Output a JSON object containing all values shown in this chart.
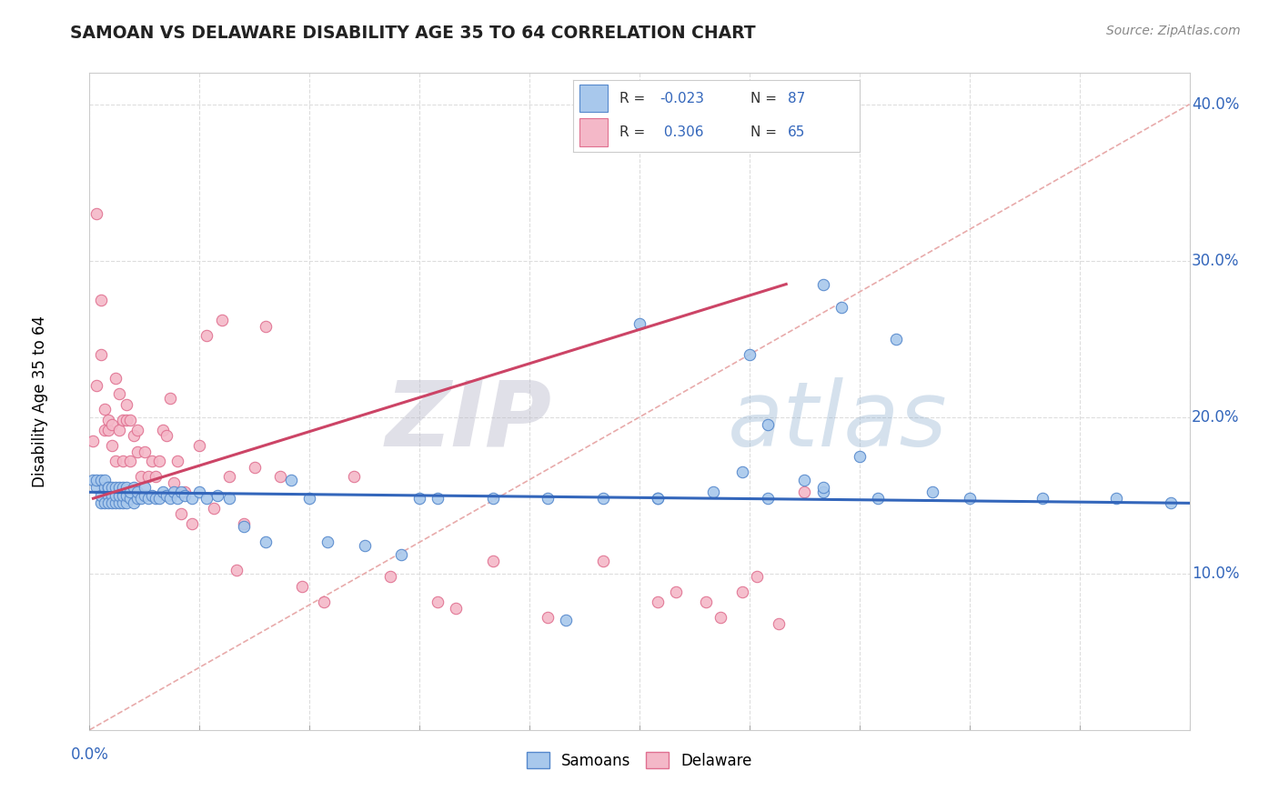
{
  "title": "SAMOAN VS DELAWARE DISABILITY AGE 35 TO 64 CORRELATION CHART",
  "source_text": "Source: ZipAtlas.com",
  "xmin": 0.0,
  "xmax": 0.3,
  "ymin": 0.0,
  "ymax": 0.42,
  "blue_R": -0.023,
  "blue_N": 87,
  "pink_R": 0.306,
  "pink_N": 65,
  "legend_label_blue": "Samoans",
  "legend_label_pink": "Delaware",
  "blue_color": "#A8C8EC",
  "pink_color": "#F4B8C8",
  "blue_edge": "#5588CC",
  "pink_edge": "#E07090",
  "blue_line_color": "#3366BB",
  "pink_line_color": "#CC4466",
  "ref_line_color": "#E8AAAA",
  "watermark_zip": "ZIP",
  "watermark_atlas": "atlas",
  "blue_scatter_x": [
    0.001,
    0.002,
    0.002,
    0.003,
    0.003,
    0.003,
    0.004,
    0.004,
    0.004,
    0.005,
    0.005,
    0.005,
    0.005,
    0.006,
    0.006,
    0.006,
    0.007,
    0.007,
    0.007,
    0.008,
    0.008,
    0.008,
    0.009,
    0.009,
    0.009,
    0.01,
    0.01,
    0.01,
    0.011,
    0.011,
    0.012,
    0.012,
    0.013,
    0.013,
    0.014,
    0.015,
    0.015,
    0.016,
    0.017,
    0.018,
    0.019,
    0.02,
    0.021,
    0.022,
    0.023,
    0.024,
    0.025,
    0.026,
    0.028,
    0.03,
    0.032,
    0.035,
    0.038,
    0.042,
    0.048,
    0.055,
    0.06,
    0.065,
    0.075,
    0.085,
    0.095,
    0.11,
    0.125,
    0.14,
    0.155,
    0.17,
    0.185,
    0.2,
    0.215,
    0.23,
    0.15,
    0.18,
    0.205,
    0.22,
    0.185,
    0.2,
    0.26,
    0.28,
    0.295,
    0.178,
    0.195,
    0.21,
    0.24,
    0.2,
    0.155,
    0.13,
    0.09
  ],
  "blue_scatter_y": [
    0.16,
    0.155,
    0.16,
    0.145,
    0.15,
    0.16,
    0.145,
    0.155,
    0.16,
    0.15,
    0.155,
    0.145,
    0.155,
    0.15,
    0.145,
    0.155,
    0.145,
    0.15,
    0.155,
    0.145,
    0.15,
    0.155,
    0.145,
    0.15,
    0.155,
    0.145,
    0.15,
    0.155,
    0.148,
    0.152,
    0.145,
    0.155,
    0.148,
    0.152,
    0.148,
    0.15,
    0.155,
    0.148,
    0.15,
    0.148,
    0.148,
    0.152,
    0.15,
    0.148,
    0.152,
    0.148,
    0.152,
    0.15,
    0.148,
    0.152,
    0.148,
    0.15,
    0.148,
    0.13,
    0.12,
    0.16,
    0.148,
    0.12,
    0.118,
    0.112,
    0.148,
    0.148,
    0.148,
    0.148,
    0.148,
    0.152,
    0.148,
    0.152,
    0.148,
    0.152,
    0.26,
    0.24,
    0.27,
    0.25,
    0.195,
    0.155,
    0.148,
    0.148,
    0.145,
    0.165,
    0.16,
    0.175,
    0.148,
    0.285,
    0.148,
    0.07,
    0.148
  ],
  "pink_scatter_x": [
    0.001,
    0.002,
    0.002,
    0.003,
    0.003,
    0.004,
    0.004,
    0.005,
    0.005,
    0.006,
    0.006,
    0.007,
    0.007,
    0.008,
    0.008,
    0.009,
    0.009,
    0.01,
    0.01,
    0.011,
    0.011,
    0.012,
    0.013,
    0.013,
    0.014,
    0.015,
    0.016,
    0.017,
    0.018,
    0.019,
    0.02,
    0.021,
    0.022,
    0.023,
    0.024,
    0.025,
    0.026,
    0.028,
    0.03,
    0.032,
    0.034,
    0.036,
    0.038,
    0.04,
    0.042,
    0.045,
    0.048,
    0.052,
    0.058,
    0.064,
    0.072,
    0.082,
    0.095,
    0.11,
    0.125,
    0.14,
    0.155,
    0.168,
    0.178,
    0.188,
    0.195,
    0.16,
    0.172,
    0.182,
    0.1
  ],
  "pink_scatter_y": [
    0.185,
    0.33,
    0.22,
    0.275,
    0.24,
    0.205,
    0.192,
    0.192,
    0.198,
    0.182,
    0.195,
    0.172,
    0.225,
    0.192,
    0.215,
    0.198,
    0.172,
    0.208,
    0.198,
    0.172,
    0.198,
    0.188,
    0.192,
    0.178,
    0.162,
    0.178,
    0.162,
    0.172,
    0.162,
    0.172,
    0.192,
    0.188,
    0.212,
    0.158,
    0.172,
    0.138,
    0.152,
    0.132,
    0.182,
    0.252,
    0.142,
    0.262,
    0.162,
    0.102,
    0.132,
    0.168,
    0.258,
    0.162,
    0.092,
    0.082,
    0.162,
    0.098,
    0.082,
    0.108,
    0.072,
    0.108,
    0.082,
    0.082,
    0.088,
    0.068,
    0.152,
    0.088,
    0.072,
    0.098,
    0.078
  ],
  "blue_trendline_x": [
    0.0,
    0.3
  ],
  "blue_trendline_y": [
    0.152,
    0.145
  ],
  "pink_trendline_x": [
    0.001,
    0.19
  ],
  "pink_trendline_y": [
    0.148,
    0.285
  ]
}
